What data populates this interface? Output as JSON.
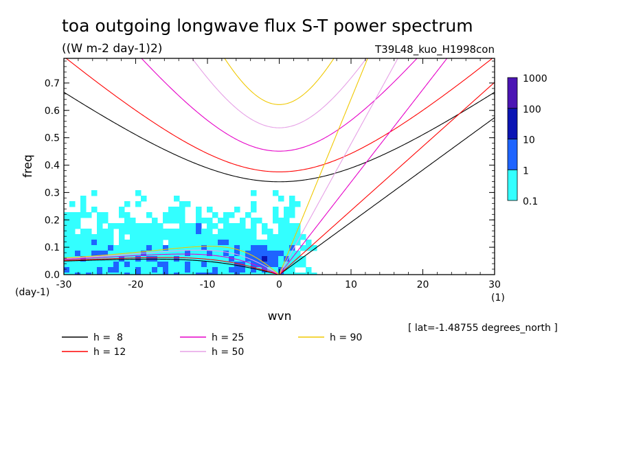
{
  "chart_data": {
    "type": "heatmap",
    "title": "toa outgoing longwave flux S-T power spectrum",
    "subtitle": "((W m-2 day-1)2)",
    "case_label": "T39L48_kuo_H1998con",
    "xlabel": "wvn",
    "ylabel": "freq",
    "x_unit_label": "(1)",
    "y_unit_label": "(day-1)",
    "location_label": "[ lat=-1.48755 degrees_north ]",
    "xlim": [
      -30,
      30
    ],
    "ylim": [
      0,
      0.79
    ],
    "x_ticks": [
      "-30",
      "-20",
      "-10",
      "0",
      "10",
      "20",
      "30"
    ],
    "y_ticks": [
      "0.0",
      "0.1",
      "0.2",
      "0.3",
      "0.4",
      "0.5",
      "0.6",
      "0.7"
    ],
    "colorbar": {
      "levels": [
        "0.1",
        "1",
        "10",
        "100",
        "1000"
      ],
      "colors": [
        "#33ffff",
        "#1e64ff",
        "#0a14b4",
        "#4b14b4"
      ]
    },
    "dispersion_curves": [
      {
        "label": "h =  8",
        "h": 8,
        "color": "#000000"
      },
      {
        "label": "h = 12",
        "h": 12,
        "color": "#ff0000"
      },
      {
        "label": "h = 25",
        "h": 25,
        "color": "#e600c8"
      },
      {
        "label": "h = 50",
        "h": 50,
        "color": "#e6a0e6"
      },
      {
        "label": "h = 90",
        "h": 90,
        "color": "#f0c800"
      }
    ],
    "spectrum_blobs": [
      {
        "x": -2.5,
        "y": 0.06,
        "rx": 2.5,
        "ry": 0.05,
        "level": 2
      },
      {
        "x": -7,
        "y": 0.12,
        "rx": 4,
        "ry": 0.05,
        "level": 1
      },
      {
        "x": -12,
        "y": 0.16,
        "rx": 3,
        "ry": 0.05,
        "level": 1
      },
      {
        "x": -18,
        "y": 0.14,
        "rx": 3,
        "ry": 0.03,
        "level": 1
      },
      {
        "x": -5,
        "y": 0.05,
        "rx": 4,
        "ry": 0.03,
        "level": 1
      },
      {
        "x": 0,
        "y": 0.02,
        "rx": 2,
        "ry": 0.02,
        "level": 1
      },
      {
        "x": -22,
        "y": 0.07,
        "rx": 3,
        "ry": 0.02,
        "level": 1
      }
    ]
  }
}
